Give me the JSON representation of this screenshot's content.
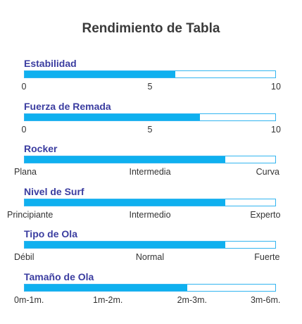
{
  "chart_data": {
    "type": "bar",
    "title": "Rendimiento de Tabla",
    "orientation": "horizontal",
    "bar_color": "#0fb0ef",
    "border_color": "#33b5f0",
    "label_color": "#3b3da0",
    "metrics": [
      {
        "name": "Estabilidad",
        "value": 6,
        "min": 0,
        "max": 10,
        "ticks": [
          {
            "label": "0",
            "value": 0
          },
          {
            "label": "5",
            "value": 5
          },
          {
            "label": "10",
            "value": 10
          }
        ]
      },
      {
        "name": "Fuerza de Remada",
        "value": 7,
        "min": 0,
        "max": 10,
        "ticks": [
          {
            "label": "0",
            "value": 0
          },
          {
            "label": "5",
            "value": 5
          },
          {
            "label": "10",
            "value": 10
          }
        ]
      },
      {
        "name": "Rocker",
        "value": 8,
        "min": 0,
        "max": 10,
        "ticks": [
          {
            "label": "Plana",
            "value": 0
          },
          {
            "label": "Intermedia",
            "value": 5
          },
          {
            "label": "Curva",
            "value": 10
          }
        ]
      },
      {
        "name": "Nivel de Surf",
        "value": 8,
        "min": 0,
        "max": 10,
        "ticks": [
          {
            "label": "Principiante",
            "value": 0
          },
          {
            "label": "Intermedio",
            "value": 5
          },
          {
            "label": "Experto",
            "value": 10
          }
        ]
      },
      {
        "name": "Tipo de Ola",
        "value": 8,
        "min": 0,
        "max": 10,
        "ticks": [
          {
            "label": "Débil",
            "value": 0
          },
          {
            "label": "Normal",
            "value": 5
          },
          {
            "label": "Fuerte",
            "value": 10
          }
        ]
      },
      {
        "name": "Tamaño de Ola",
        "value": 6.5,
        "min": 0,
        "max": 10,
        "ticks": [
          {
            "label": "0m-1m.",
            "value": 0
          },
          {
            "label": "1m-2m.",
            "value": 3.33
          },
          {
            "label": "2m-3m.",
            "value": 6.67
          },
          {
            "label": "3m-6m.",
            "value": 10
          }
        ]
      }
    ]
  }
}
